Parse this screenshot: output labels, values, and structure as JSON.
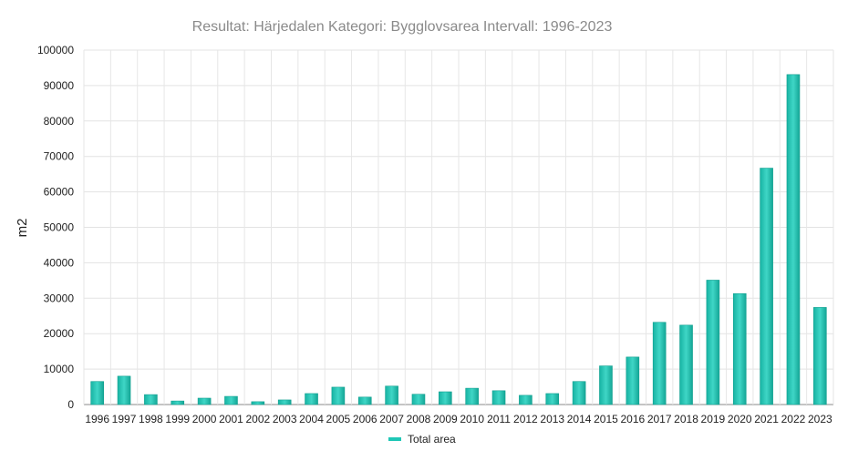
{
  "chart_data": {
    "type": "bar",
    "title": "Resultat: Härjedalen Kategori: Bygglovsarea Intervall: 1996-2023",
    "xlabel": "",
    "ylabel": "m2",
    "ylim": [
      0,
      100000
    ],
    "yticks": [
      "0",
      "10000",
      "20000",
      "30000",
      "40000",
      "50000",
      "60000",
      "70000",
      "80000",
      "90000",
      "100000"
    ],
    "grid": true,
    "legend_position": "bottom",
    "categories": [
      "1996",
      "1997",
      "1998",
      "1999",
      "2000",
      "2001",
      "2002",
      "2003",
      "2004",
      "2005",
      "2006",
      "2007",
      "2008",
      "2009",
      "2010",
      "2011",
      "2012",
      "2013",
      "2014",
      "2015",
      "2016",
      "2017",
      "2018",
      "2019",
      "2020",
      "2021",
      "2022",
      "2023"
    ],
    "series": [
      {
        "name": "Total area",
        "color": "#1fc7b6",
        "values": [
          6500,
          8000,
          2800,
          1000,
          1800,
          2300,
          800,
          1300,
          3100,
          4900,
          2100,
          5200,
          2900,
          3600,
          4600,
          3900,
          2600,
          3100,
          6500,
          10900,
          13400,
          23200,
          22400,
          35100,
          31300,
          66700,
          93100,
          27400
        ]
      }
    ]
  }
}
